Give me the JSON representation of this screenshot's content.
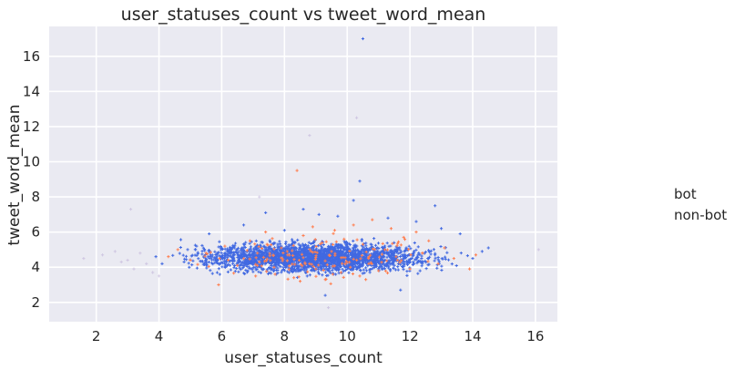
{
  "chart_data": {
    "type": "scatter",
    "title": "user_statuses_count vs tweet_word_mean",
    "xlabel": "user_statuses_count",
    "ylabel": "tweet_word_mean",
    "xlim": [
      0.5,
      16.7
    ],
    "ylim": [
      0.9,
      17.7
    ],
    "xticks": [
      2,
      4,
      6,
      8,
      10,
      12,
      14,
      16
    ],
    "yticks": [
      2,
      4,
      6,
      8,
      10,
      12,
      14,
      16
    ],
    "grid": true,
    "background": "#eaeaf2",
    "legend": {
      "placement": "right",
      "entries": [
        "bot",
        "non-bot"
      ]
    },
    "series": [
      {
        "name": "bot",
        "color": "#ff7f50",
        "points": [
          [
            4.3,
            4.6
          ],
          [
            4.6,
            5.0
          ],
          [
            5.0,
            4.4
          ],
          [
            5.5,
            4.8
          ],
          [
            5.9,
            3.0
          ],
          [
            6.1,
            5.2
          ],
          [
            6.5,
            4.1
          ],
          [
            6.9,
            5.5
          ],
          [
            7.2,
            4.3
          ],
          [
            7.4,
            6.0
          ],
          [
            7.7,
            3.6
          ],
          [
            7.9,
            5.1
          ],
          [
            8.1,
            4.7
          ],
          [
            8.3,
            3.4
          ],
          [
            8.4,
            9.5
          ],
          [
            8.5,
            3.2
          ],
          [
            8.6,
            5.8
          ],
          [
            8.8,
            4.2
          ],
          [
            8.9,
            6.3
          ],
          [
            9.0,
            3.9
          ],
          [
            9.2,
            5.4
          ],
          [
            9.3,
            3.3
          ],
          [
            9.5,
            4.9
          ],
          [
            9.6,
            6.1
          ],
          [
            9.8,
            3.7
          ],
          [
            9.9,
            5.6
          ],
          [
            10.1,
            4.0
          ],
          [
            10.2,
            6.4
          ],
          [
            10.4,
            3.5
          ],
          [
            10.5,
            5.3
          ],
          [
            10.7,
            4.6
          ],
          [
            10.8,
            6.7
          ],
          [
            11.0,
            3.8
          ],
          [
            11.2,
            5.0
          ],
          [
            11.4,
            6.2
          ],
          [
            11.6,
            4.4
          ],
          [
            11.8,
            5.7
          ],
          [
            12.0,
            3.9
          ],
          [
            12.2,
            6.0
          ],
          [
            12.4,
            4.8
          ],
          [
            12.6,
            5.5
          ],
          [
            12.9,
            4.2
          ],
          [
            13.1,
            5.1
          ],
          [
            13.4,
            4.5
          ],
          [
            13.9,
            3.9
          ],
          [
            14.1,
            4.7
          ]
        ]
      },
      {
        "name": "non-bot",
        "color": "#4169e1",
        "points": [
          [
            10.5,
            17.0
          ],
          [
            10.4,
            8.9
          ],
          [
            12.8,
            7.5
          ],
          [
            7.4,
            7.1
          ],
          [
            8.6,
            7.3
          ],
          [
            9.1,
            7.0
          ],
          [
            9.7,
            6.9
          ],
          [
            11.3,
            6.8
          ],
          [
            12.2,
            6.6
          ],
          [
            6.7,
            6.4
          ],
          [
            13.6,
            5.9
          ],
          [
            14.5,
            5.1
          ],
          [
            14.0,
            4.5
          ],
          [
            14.3,
            4.9
          ],
          [
            4.8,
            4.3
          ],
          [
            5.2,
            5.2
          ],
          [
            3.9,
            4.6
          ],
          [
            4.1,
            4.2
          ],
          [
            11.7,
            2.7
          ],
          [
            9.3,
            2.4
          ],
          [
            10.2,
            7.8
          ],
          [
            8.0,
            6.1
          ],
          [
            5.6,
            5.9
          ],
          [
            13.0,
            6.2
          ]
        ]
      }
    ],
    "faint_points": [
      [
        1.6,
        4.5
      ],
      [
        2.2,
        4.7
      ],
      [
        2.8,
        4.3
      ],
      [
        3.1,
        7.3
      ],
      [
        3.2,
        3.9
      ],
      [
        3.4,
        4.8
      ],
      [
        3.6,
        4.2
      ],
      [
        3.8,
        3.7
      ],
      [
        8.8,
        11.5
      ],
      [
        10.3,
        12.5
      ],
      [
        16.1,
        5.0
      ],
      [
        9.4,
        1.7
      ],
      [
        7.2,
        8.0
      ],
      [
        2.6,
        4.9
      ],
      [
        3.0,
        4.4
      ],
      [
        4.0,
        3.5
      ]
    ]
  }
}
